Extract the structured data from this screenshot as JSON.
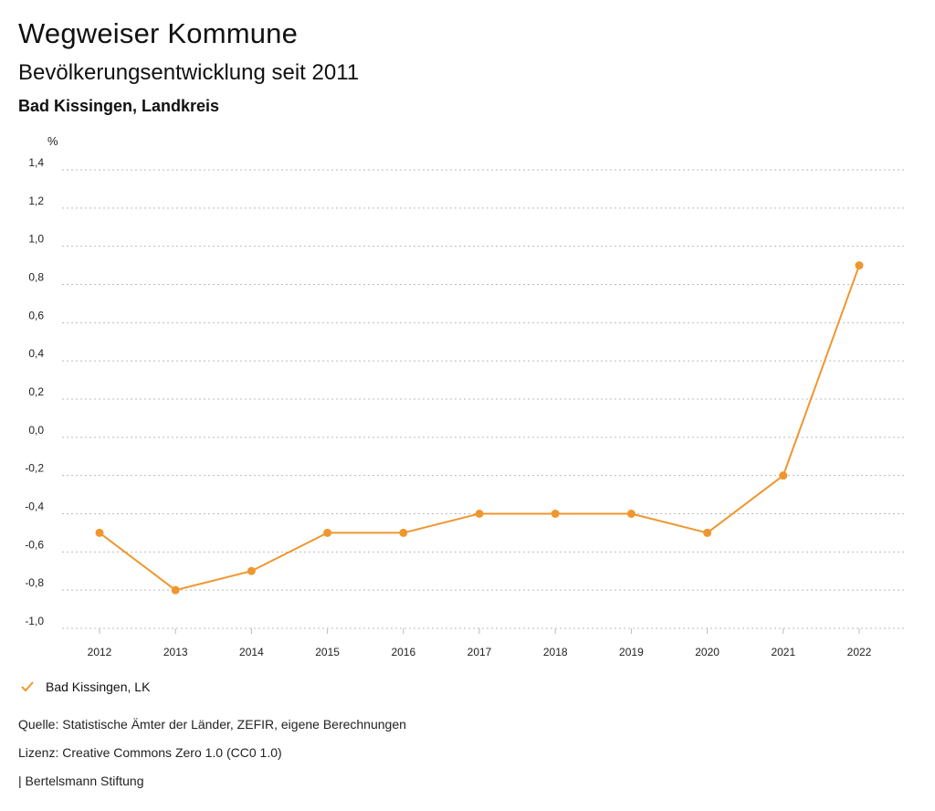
{
  "header": {
    "title": "Wegweiser Kommune",
    "subtitle": "Bevölkerungsentwicklung seit 2011",
    "region": "Bad Kissingen, Landkreis"
  },
  "colors": {
    "series": "#F0962E",
    "grid": "#bbbbbb",
    "text": "#111111"
  },
  "chart_data": {
    "type": "line",
    "ylabel": "%",
    "ylim": [
      -1.0,
      1.4
    ],
    "yticks": [
      "-1,0",
      "-0,8",
      "-0,6",
      "-0,4",
      "-0,2",
      "0,0",
      "0,2",
      "0,4",
      "0,6",
      "0,8",
      "1,0",
      "1,2",
      "1,4"
    ],
    "x": [
      "2012",
      "2013",
      "2014",
      "2015",
      "2016",
      "2017",
      "2018",
      "2019",
      "2020",
      "2021",
      "2022"
    ],
    "series": [
      {
        "name": "Bad Kissingen, LK",
        "values": [
          -0.5,
          -0.8,
          -0.7,
          -0.5,
          -0.5,
          -0.4,
          -0.4,
          -0.4,
          -0.5,
          -0.2,
          0.9
        ]
      }
    ],
    "grid": true,
    "legend": "bottom-left"
  },
  "legend": {
    "icon": "check-icon",
    "label": "Bad Kissingen, LK"
  },
  "footer": {
    "source": "Quelle: Statistische Ämter der Länder, ZEFIR, eigene Berechnungen",
    "license": "Lizenz: Creative Commons Zero 1.0 (CC0 1.0)",
    "publisher": "| Bertelsmann Stiftung"
  }
}
